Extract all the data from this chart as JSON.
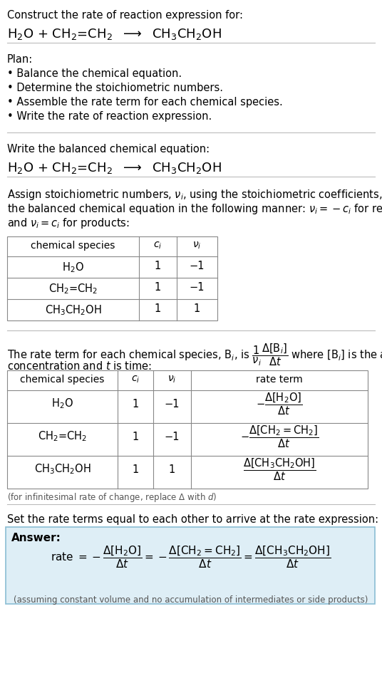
{
  "bg_color": "#ffffff",
  "answer_box_color": "#deeef6",
  "answer_box_border": "#8bbdd4",
  "text_color": "#000000",
  "gray_text": "#555555",
  "table_border": "#888888",
  "title_line1": "Construct the rate of reaction expression for:",
  "title_line2": "H$_2$O + CH$_2$=CH$_2$  $\\longrightarrow$  CH$_3$CH$_2$OH",
  "plan_header": "Plan:",
  "plan_items": [
    "• Balance the chemical equation.",
    "• Determine the stoichiometric numbers.",
    "• Assemble the rate term for each chemical species.",
    "• Write the rate of reaction expression."
  ],
  "balanced_header": "Write the balanced chemical equation:",
  "balanced_eq": "H$_2$O + CH$_2$=CH$_2$  $\\longrightarrow$  CH$_3$CH$_2$OH",
  "stoich_intro_lines": [
    "Assign stoichiometric numbers, $\\nu_i$, using the stoichiometric coefficients, $c_i$, from",
    "the balanced chemical equation in the following manner: $\\nu_i = -c_i$ for reactants",
    "and $\\nu_i = c_i$ for products:"
  ],
  "table1_headers": [
    "chemical species",
    "$c_i$",
    "$\\nu_i$"
  ],
  "table1_rows": [
    [
      "H$_2$O",
      "1",
      "−1"
    ],
    [
      "CH$_2$=CH$_2$",
      "1",
      "−1"
    ],
    [
      "CH$_3$CH$_2$OH",
      "1",
      "1"
    ]
  ],
  "rate_intro_line1": "The rate term for each chemical species, B$_i$, is $\\dfrac{1}{\\nu_i}\\dfrac{\\Delta[\\mathrm{B}_i]}{\\Delta t}$ where [B$_i$] is the amount",
  "rate_intro_line2": "concentration and $t$ is time:",
  "table2_headers": [
    "chemical species",
    "$c_i$",
    "$\\nu_i$",
    "rate term"
  ],
  "table2_rows": [
    [
      "H$_2$O",
      "1",
      "−1",
      "$-\\dfrac{\\Delta[\\mathrm{H_2O}]}{\\Delta t}$"
    ],
    [
      "CH$_2$=CH$_2$",
      "1",
      "−1",
      "$-\\dfrac{\\Delta[\\mathrm{CH_2{=}CH_2}]}{\\Delta t}$"
    ],
    [
      "CH$_3$CH$_2$OH",
      "1",
      "1",
      "$\\dfrac{\\Delta[\\mathrm{CH_3CH_2OH}]}{\\Delta t}$"
    ]
  ],
  "infinitesimal_note": "(for infinitesimal rate of change, replace Δ with $d$)",
  "set_equal_text": "Set the rate terms equal to each other to arrive at the rate expression:",
  "answer_label": "Answer:",
  "rate_expression": "rate $= -\\dfrac{\\Delta[\\mathrm{H_2O}]}{\\Delta t} = -\\dfrac{\\Delta[\\mathrm{CH_2{=}CH_2}]}{\\Delta t} = \\dfrac{\\Delta[\\mathrm{CH_3CH_2OH}]}{\\Delta t}$",
  "assumption_note": "(assuming constant volume and no accumulation of intermediates or side products)"
}
